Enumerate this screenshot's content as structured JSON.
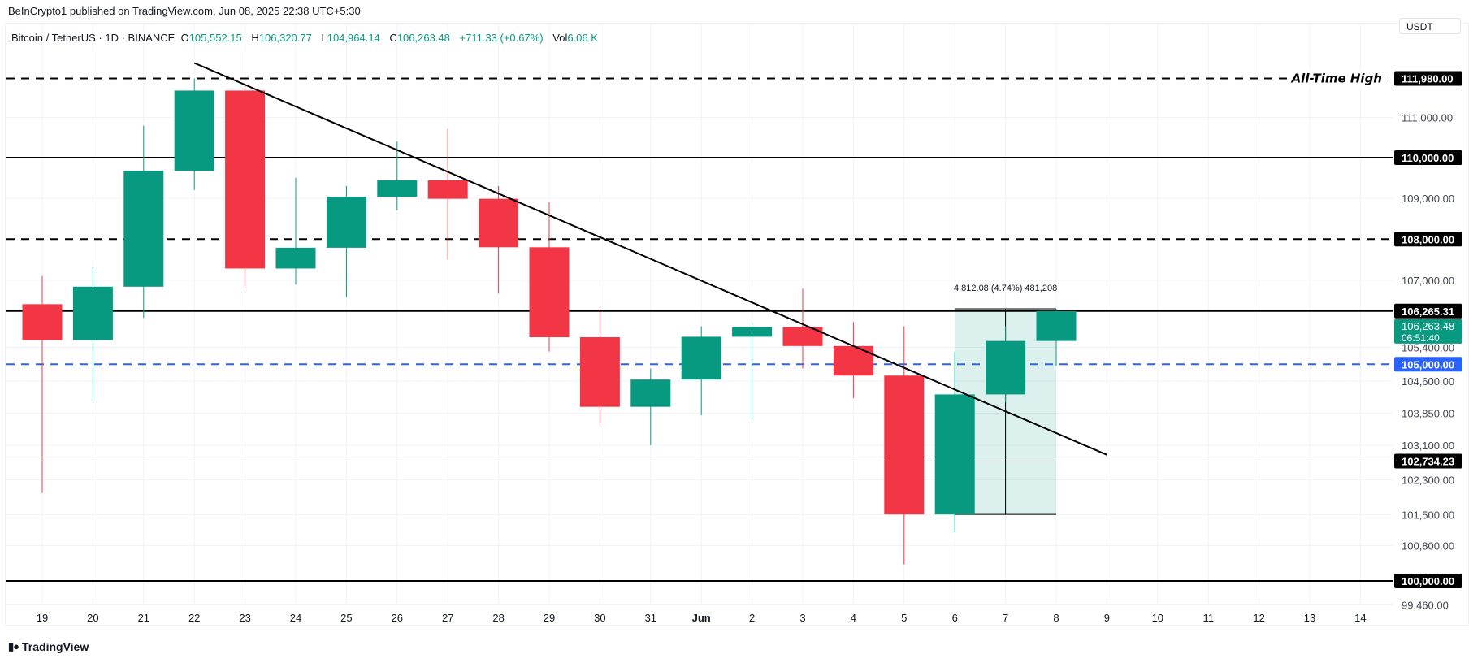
{
  "published": "BeInCrypto1 published on TradingView.com, Jun 08, 2025 22:38 UTC+5:30",
  "legend": {
    "symbol": "Bitcoin / TetherUS · 1D · BINANCE",
    "o_label": "O",
    "o": "105,552.15",
    "h_label": "H",
    "h": "106,320.77",
    "l_label": "L",
    "l": "104,964.14",
    "c_label": "C",
    "c": "106,263.48",
    "change": "+711.33 (+0.67%)",
    "vol_label": "Vol",
    "vol": "6.06 K"
  },
  "currency_button": "USDT",
  "logo": {
    "mark": "17",
    "text": "TradingView"
  },
  "colors": {
    "up": "#089981",
    "down": "#f23645",
    "blue_level": "#2962ff",
    "measure_fill": "#089981"
  },
  "chart_data": {
    "type": "candlestick",
    "y_scale": "log",
    "ylim": [
      99300,
      112600
    ],
    "grid": true,
    "x_labels": [
      "19",
      "20",
      "21",
      "22",
      "23",
      "24",
      "25",
      "26",
      "27",
      "28",
      "29",
      "30",
      "31",
      "Jun",
      "2",
      "3",
      "4",
      "5",
      "6",
      "7",
      "8",
      "9",
      "10",
      "11",
      "12",
      "13",
      "14"
    ],
    "y_tick_labels": [
      {
        "value": 111000,
        "label": "111,000.00"
      },
      {
        "value": 109000,
        "label": "109,000.00"
      },
      {
        "value": 107000,
        "label": "107,000.00"
      },
      {
        "value": 105400,
        "label": "105,400.00"
      },
      {
        "value": 104600,
        "label": "104,600.00"
      },
      {
        "value": 103850,
        "label": "103,850.00"
      },
      {
        "value": 103100,
        "label": "103,100.00"
      },
      {
        "value": 102300,
        "label": "102,300.00"
      },
      {
        "value": 101500,
        "label": "101,500.00"
      },
      {
        "value": 100800,
        "label": "100,800.00"
      },
      {
        "value": 99460,
        "label": "99,460.00"
      }
    ],
    "candles": [
      {
        "date": "May 19",
        "o": 106430,
        "h": 107108,
        "l": 102000,
        "c": 105574
      },
      {
        "date": "May 20",
        "o": 105574,
        "h": 107320,
        "l": 104140,
        "c": 106850
      },
      {
        "date": "May 21",
        "o": 106850,
        "h": 110797,
        "l": 106100,
        "c": 109674
      },
      {
        "date": "May 22",
        "o": 109674,
        "h": 111980,
        "l": 109200,
        "c": 111674
      },
      {
        "date": "May 23",
        "o": 111674,
        "h": 111800,
        "l": 106800,
        "c": 107288
      },
      {
        "date": "May 24",
        "o": 107288,
        "h": 109500,
        "l": 106900,
        "c": 107791
      },
      {
        "date": "May 25",
        "o": 107791,
        "h": 109300,
        "l": 106600,
        "c": 109035
      },
      {
        "date": "May 26",
        "o": 109035,
        "h": 110400,
        "l": 108700,
        "c": 109440
      },
      {
        "date": "May 27",
        "o": 109440,
        "h": 110718,
        "l": 107500,
        "c": 108985
      },
      {
        "date": "May 28",
        "o": 108985,
        "h": 109300,
        "l": 106700,
        "c": 107802
      },
      {
        "date": "May 29",
        "o": 107802,
        "h": 108900,
        "l": 105300,
        "c": 105641
      },
      {
        "date": "May 30",
        "o": 105641,
        "h": 106300,
        "l": 103600,
        "c": 103998
      },
      {
        "date": "May 31",
        "o": 103998,
        "h": 104900,
        "l": 103100,
        "c": 104638
      },
      {
        "date": "Jun 1",
        "o": 104638,
        "h": 105900,
        "l": 103800,
        "c": 105652
      },
      {
        "date": "Jun 2",
        "o": 105652,
        "h": 105980,
        "l": 103700,
        "c": 105882
      },
      {
        "date": "Jun 3",
        "o": 105882,
        "h": 106800,
        "l": 104900,
        "c": 105432
      },
      {
        "date": "Jun 4",
        "o": 105432,
        "h": 106000,
        "l": 104200,
        "c": 104732
      },
      {
        "date": "Jun 5",
        "o": 104732,
        "h": 105900,
        "l": 100372,
        "c": 101508
      },
      {
        "date": "Jun 6",
        "o": 101508,
        "h": 105300,
        "l": 101100,
        "c": 104289
      },
      {
        "date": "Jun 7",
        "o": 104289,
        "h": 105900,
        "l": 104100,
        "c": 105552
      },
      {
        "date": "Jun 8",
        "o": 105552.15,
        "h": 106320.77,
        "l": 104964.14,
        "c": 106263.48
      }
    ],
    "levels": [
      {
        "value": 111980,
        "label": "111,980.00",
        "style": "dashed",
        "color": "#000000",
        "annotation": "All-Time High"
      },
      {
        "value": 110000,
        "label": "110,000.00",
        "style": "solid",
        "color": "#000000"
      },
      {
        "value": 108000,
        "label": "108,000.00",
        "style": "dashed",
        "color": "#000000"
      },
      {
        "value": 106265.31,
        "label": "106,265.31",
        "style": "solid",
        "color": "#000000"
      },
      {
        "value": 105000,
        "label": "105,000.00",
        "style": "dashed",
        "color": "#2962ff"
      },
      {
        "value": 102734.23,
        "label": "102,734.23",
        "style": "thin",
        "color": "#000000"
      },
      {
        "value": 100000,
        "label": "100,000.00",
        "style": "solid",
        "color": "#000000"
      }
    ],
    "last_price": {
      "label": "106,263.48",
      "countdown": "06:51:40",
      "value": 106263.48
    },
    "trendline": [
      {
        "date": "May 22",
        "price": 112370
      },
      {
        "date": "Jun 9",
        "price": 102880
      }
    ],
    "measure": {
      "from_date": "Jun 6",
      "to_date": "Jun 8",
      "low": 101508.69,
      "high": 106320.77,
      "label": "4,812.08 (4.74%) 481,208"
    }
  }
}
